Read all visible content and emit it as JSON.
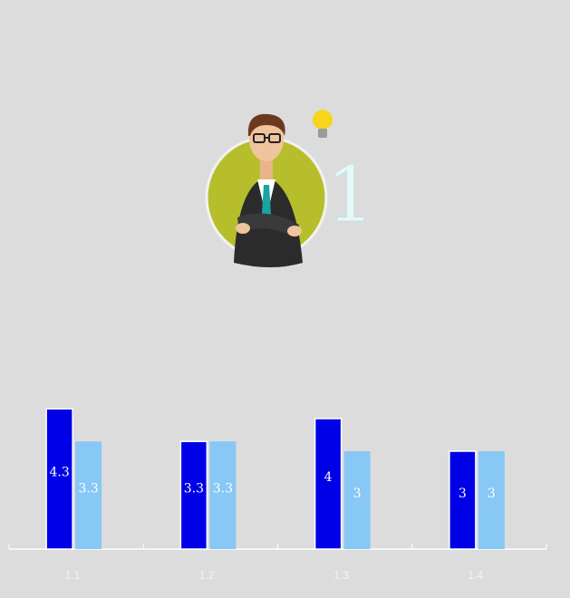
{
  "badge": "1",
  "chart_data": {
    "type": "bar",
    "categories": [
      "1.1",
      "1.2",
      "1.3",
      "1.4"
    ],
    "series": [
      {
        "color": "#0000e6",
        "values": [
          4.3,
          3.3,
          4,
          3
        ]
      },
      {
        "color": "#87c8f5",
        "values": [
          3.3,
          3.3,
          3,
          3
        ]
      }
    ],
    "ylim": [
      0,
      5
    ]
  }
}
